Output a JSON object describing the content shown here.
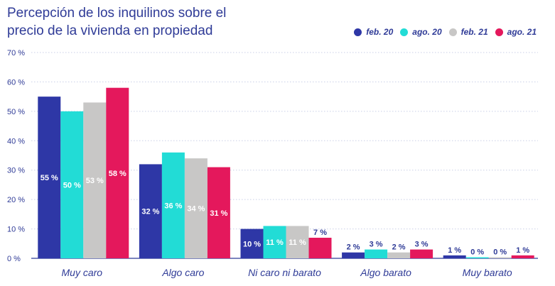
{
  "chart_data": {
    "type": "bar",
    "title": "Percepción de los inquilinos sobre el\nprecio de la vivienda en propiedad",
    "categories": [
      "Muy caro",
      "Algo caro",
      "Ni caro ni barato",
      "Algo barato",
      "Muy barato"
    ],
    "series": [
      {
        "name": "feb. 20",
        "color": "#2e37a6",
        "values": [
          55,
          32,
          10,
          2,
          1
        ],
        "labels": [
          "55 %",
          "32 %",
          "10 %",
          "2 %",
          "1 %"
        ]
      },
      {
        "name": "ago. 20",
        "color": "#22dcd6",
        "values": [
          50,
          36,
          11,
          3,
          0
        ],
        "labels": [
          "50 %",
          "36 %",
          "11 %",
          "3 %",
          "0 %"
        ]
      },
      {
        "name": "feb. 21",
        "color": "#c8c7c6",
        "values": [
          53,
          34,
          11,
          2,
          0
        ],
        "labels": [
          "53 %",
          "34 %",
          "11 %",
          "2 %",
          "0 %"
        ]
      },
      {
        "name": "ago. 21",
        "color": "#e4185c",
        "values": [
          58,
          31,
          7,
          3,
          1
        ],
        "labels": [
          "58 %",
          "31 %",
          "7 %",
          "3 %",
          "1 %"
        ]
      }
    ],
    "ylim": [
      0,
      70
    ],
    "yticks": [
      "0 %",
      "10 %",
      "20 %",
      "30 %",
      "40 %",
      "50 %",
      "60 %",
      "70 %"
    ],
    "xlabel": "",
    "ylabel": "",
    "grid": true,
    "legend": "top-right"
  }
}
